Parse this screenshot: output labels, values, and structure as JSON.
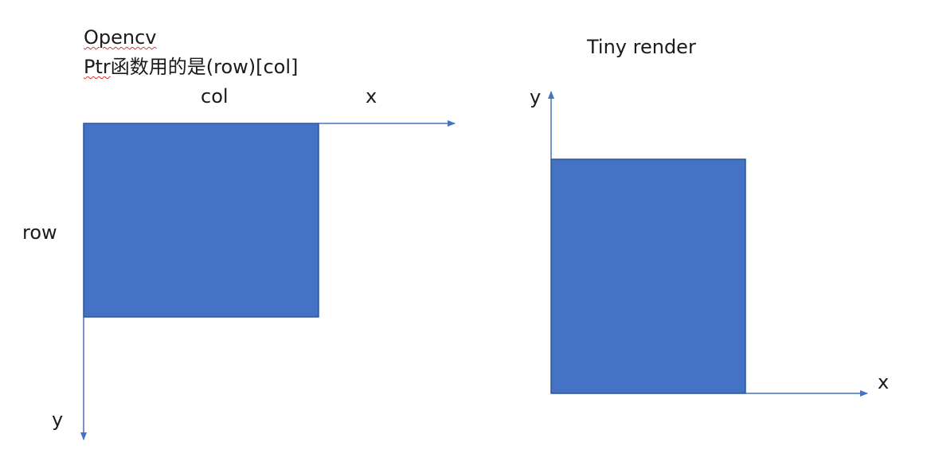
{
  "left_panel": {
    "title_line1": "Opencv",
    "title_line2_prefix": "Ptr",
    "title_line2_rest": "函数用的是(row)[col]",
    "col_label": "col",
    "row_label": "row",
    "x_axis_label": "x",
    "y_axis_label": "y",
    "axis_directions": {
      "x": "right",
      "y": "down"
    }
  },
  "right_panel": {
    "title": "Tiny render",
    "x_axis_label": "x",
    "y_axis_label": "y",
    "axis_directions": {
      "x": "right",
      "y": "up"
    }
  },
  "colors": {
    "rect_fill": "#4472C4",
    "rect_border": "#2F5597",
    "axis": "#4472C4",
    "text": "#1a1a1a",
    "spellcheck_underline": "#dd3333"
  }
}
